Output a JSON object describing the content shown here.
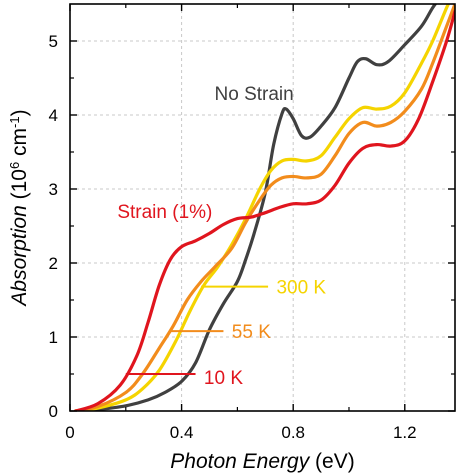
{
  "chart_data": {
    "type": "line",
    "xlabel_main": "Photon Energy",
    "xlabel_unit": " (eV)",
    "ylabel_main": "Absorption",
    "ylabel_unit_pre": " (10",
    "ylabel_unit_exp1": "6",
    "ylabel_unit_mid": " cm",
    "ylabel_unit_exp2": "-1",
    "ylabel_unit_post": ")",
    "xlim": [
      0,
      1.38
    ],
    "ylim": [
      0,
      5.5
    ],
    "xticks": [
      0,
      0.4,
      0.8,
      1.2
    ],
    "xtick_labels": [
      "0",
      "0.4",
      "0.8",
      "1.2"
    ],
    "yticks": [
      0,
      1,
      2,
      3,
      4,
      5
    ],
    "ytick_labels": [
      "0",
      "1",
      "2",
      "3",
      "4",
      "5"
    ],
    "grid": true,
    "series": [
      {
        "name": "No Strain",
        "color": "#404040",
        "points": [
          [
            0.02,
            0
          ],
          [
            0.1,
            0.02
          ],
          [
            0.2,
            0.07
          ],
          [
            0.28,
            0.15
          ],
          [
            0.34,
            0.25
          ],
          [
            0.4,
            0.4
          ],
          [
            0.45,
            0.65
          ],
          [
            0.5,
            1.1
          ],
          [
            0.55,
            1.45
          ],
          [
            0.6,
            1.75
          ],
          [
            0.63,
            2.05
          ],
          [
            0.66,
            2.4
          ],
          [
            0.7,
            2.95
          ],
          [
            0.73,
            3.6
          ],
          [
            0.76,
            4.02
          ],
          [
            0.775,
            4.08
          ],
          [
            0.8,
            3.95
          ],
          [
            0.83,
            3.72
          ],
          [
            0.86,
            3.7
          ],
          [
            0.9,
            3.85
          ],
          [
            0.95,
            4.1
          ],
          [
            1.0,
            4.5
          ],
          [
            1.03,
            4.72
          ],
          [
            1.06,
            4.76
          ],
          [
            1.1,
            4.68
          ],
          [
            1.14,
            4.72
          ],
          [
            1.2,
            4.95
          ],
          [
            1.26,
            5.2
          ],
          [
            1.3,
            5.45
          ],
          [
            1.33,
            5.6
          ]
        ]
      },
      {
        "name": "300 K",
        "color": "#f5d400",
        "points": [
          [
            0.02,
            0
          ],
          [
            0.1,
            0.04
          ],
          [
            0.2,
            0.15
          ],
          [
            0.26,
            0.3
          ],
          [
            0.32,
            0.55
          ],
          [
            0.38,
            0.95
          ],
          [
            0.43,
            1.35
          ],
          [
            0.48,
            1.7
          ],
          [
            0.53,
            1.95
          ],
          [
            0.58,
            2.25
          ],
          [
            0.63,
            2.6
          ],
          [
            0.68,
            3.0
          ],
          [
            0.72,
            3.25
          ],
          [
            0.76,
            3.38
          ],
          [
            0.8,
            3.4
          ],
          [
            0.85,
            3.38
          ],
          [
            0.9,
            3.45
          ],
          [
            0.95,
            3.7
          ],
          [
            1.0,
            3.95
          ],
          [
            1.05,
            4.1
          ],
          [
            1.1,
            4.08
          ],
          [
            1.15,
            4.12
          ],
          [
            1.2,
            4.3
          ],
          [
            1.26,
            4.7
          ],
          [
            1.3,
            5.0
          ],
          [
            1.35,
            5.45
          ],
          [
            1.37,
            5.6
          ]
        ]
      },
      {
        "name": "55 K",
        "color": "#f28c1c",
        "points": [
          [
            0.02,
            0
          ],
          [
            0.1,
            0.06
          ],
          [
            0.2,
            0.25
          ],
          [
            0.26,
            0.5
          ],
          [
            0.32,
            0.85
          ],
          [
            0.37,
            1.15
          ],
          [
            0.42,
            1.5
          ],
          [
            0.47,
            1.75
          ],
          [
            0.52,
            1.95
          ],
          [
            0.58,
            2.2
          ],
          [
            0.63,
            2.55
          ],
          [
            0.68,
            2.85
          ],
          [
            0.72,
            3.05
          ],
          [
            0.76,
            3.15
          ],
          [
            0.8,
            3.17
          ],
          [
            0.85,
            3.15
          ],
          [
            0.9,
            3.2
          ],
          [
            0.95,
            3.45
          ],
          [
            1.0,
            3.75
          ],
          [
            1.05,
            3.9
          ],
          [
            1.1,
            3.85
          ],
          [
            1.15,
            3.9
          ],
          [
            1.2,
            4.05
          ],
          [
            1.26,
            4.35
          ],
          [
            1.3,
            4.7
          ],
          [
            1.35,
            5.2
          ],
          [
            1.38,
            5.5
          ]
        ]
      },
      {
        "name": "Strain (1%)",
        "color": "#e0151e",
        "points": [
          [
            0.02,
            0
          ],
          [
            0.1,
            0.1
          ],
          [
            0.18,
            0.35
          ],
          [
            0.24,
            0.75
          ],
          [
            0.28,
            1.2
          ],
          [
            0.32,
            1.7
          ],
          [
            0.36,
            2.05
          ],
          [
            0.4,
            2.22
          ],
          [
            0.45,
            2.3
          ],
          [
            0.5,
            2.4
          ],
          [
            0.55,
            2.52
          ],
          [
            0.6,
            2.6
          ],
          [
            0.65,
            2.62
          ],
          [
            0.7,
            2.68
          ],
          [
            0.75,
            2.75
          ],
          [
            0.8,
            2.8
          ],
          [
            0.85,
            2.8
          ],
          [
            0.9,
            2.85
          ],
          [
            0.95,
            3.05
          ],
          [
            1.0,
            3.35
          ],
          [
            1.05,
            3.55
          ],
          [
            1.1,
            3.6
          ],
          [
            1.15,
            3.58
          ],
          [
            1.2,
            3.65
          ],
          [
            1.25,
            3.95
          ],
          [
            1.3,
            4.45
          ],
          [
            1.35,
            5.0
          ],
          [
            1.38,
            5.4
          ]
        ]
      }
    ],
    "annotations": [
      {
        "text": "No Strain",
        "color": "#404040",
        "at": [
          0.66,
          4.3
        ]
      },
      {
        "text": "Strain (1%)",
        "color": "#e0151e",
        "at": [
          0.34,
          2.7
        ]
      },
      {
        "text": "300 K",
        "color": "#f5d400",
        "at": [
          0.74,
          1.68
        ],
        "line_from": [
          0.47,
          1.68
        ],
        "line_to": [
          0.71,
          1.68
        ]
      },
      {
        "text": "55 K",
        "color": "#f28c1c",
        "at": [
          0.58,
          1.08
        ],
        "line_from": [
          0.36,
          1.08
        ],
        "line_to": [
          0.55,
          1.08
        ]
      },
      {
        "text": "10 K",
        "color": "#e0151e",
        "at": [
          0.48,
          0.46
        ],
        "line_from": [
          0.2,
          0.5
        ],
        "line_to": [
          0.45,
          0.5
        ]
      }
    ]
  }
}
